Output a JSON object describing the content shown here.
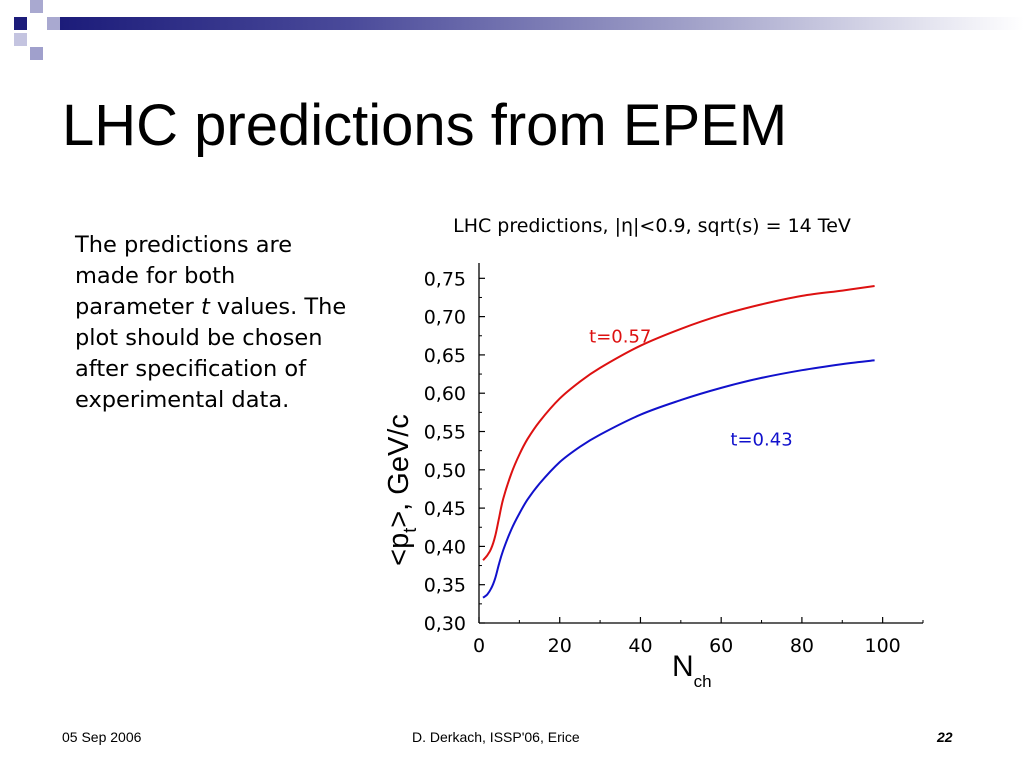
{
  "slide": {
    "title": "LHC predictions from EPEM",
    "body": {
      "before_italic": "The predictions are made for both parameter ",
      "italic": "t",
      "after_italic": " values. The plot should be chosen after specification of experimental data."
    },
    "footer": {
      "date": "05 Sep 2006",
      "center": "D. Derkach, ISSP'06, Erice",
      "page": "22"
    },
    "colors": {
      "decor_dark": "#1c1c7a",
      "decor_mid": "#6666aa",
      "decor_light": "#a9a9d0"
    }
  },
  "chart_data": {
    "type": "line",
    "title": "LHC predictions, |η|<0.9, sqrt(s) = 14 TeV",
    "xlabel": "N",
    "xlabel_sub": "ch",
    "ylabel_prefix": "<p",
    "ylabel_sub": "t",
    "ylabel_suffix": ">, GeV/c",
    "xlim": [
      0,
      110
    ],
    "ylim": [
      0.3,
      0.77
    ],
    "x_ticks": [
      0,
      20,
      40,
      60,
      80,
      100
    ],
    "x_tick_labels": [
      "0",
      "20",
      "40",
      "60",
      "80",
      "100"
    ],
    "y_ticks": [
      0.3,
      0.35,
      0.4,
      0.45,
      0.5,
      0.55,
      0.6,
      0.65,
      0.7,
      0.75
    ],
    "y_tick_labels": [
      "0,30",
      "0,35",
      "0,40",
      "0,45",
      "0,50",
      "0,55",
      "0,60",
      "0,65",
      "0,70",
      "0,75"
    ],
    "grid": false,
    "series": [
      {
        "name": "t=0.57",
        "color": "#dd1111",
        "x": [
          1,
          2,
          3,
          4,
          5,
          6,
          8,
          10,
          12,
          15,
          20,
          25,
          30,
          40,
          50,
          60,
          70,
          80,
          90,
          98
        ],
        "y": [
          0.382,
          0.388,
          0.397,
          0.413,
          0.438,
          0.462,
          0.495,
          0.52,
          0.54,
          0.563,
          0.593,
          0.615,
          0.633,
          0.662,
          0.684,
          0.702,
          0.716,
          0.727,
          0.734,
          0.74
        ]
      },
      {
        "name": "t=0.43",
        "color": "#1111cc",
        "x": [
          1,
          2,
          3,
          4,
          5,
          6,
          8,
          10,
          12,
          15,
          20,
          25,
          30,
          40,
          50,
          60,
          70,
          80,
          90,
          98
        ],
        "y": [
          0.333,
          0.337,
          0.345,
          0.358,
          0.378,
          0.395,
          0.422,
          0.443,
          0.461,
          0.482,
          0.51,
          0.53,
          0.546,
          0.572,
          0.591,
          0.607,
          0.62,
          0.63,
          0.638,
          0.643
        ]
      }
    ]
  }
}
